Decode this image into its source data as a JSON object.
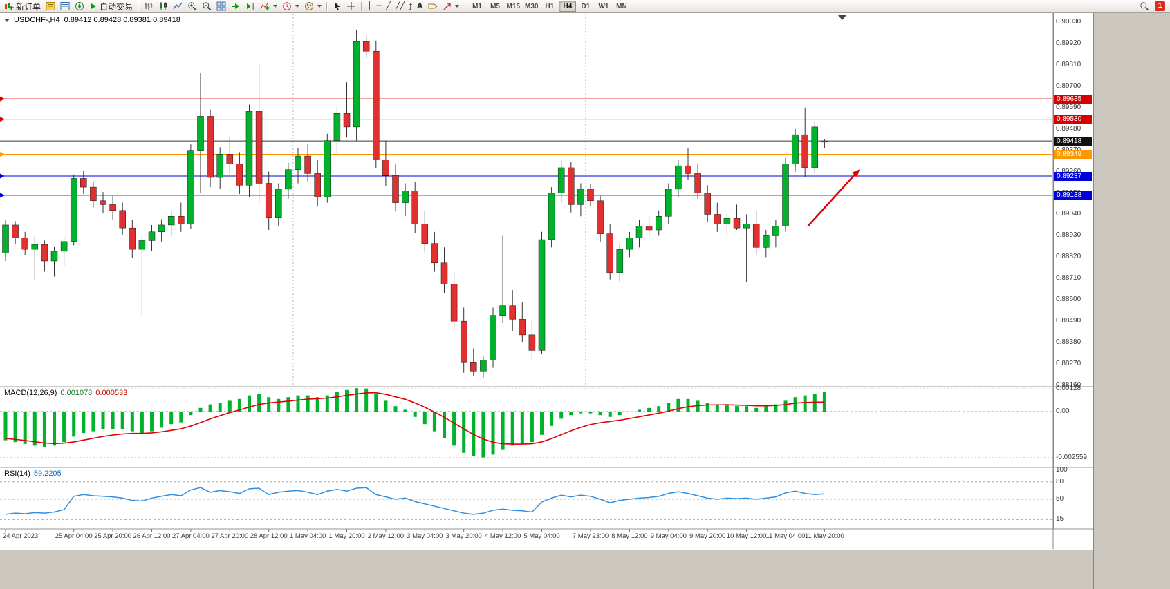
{
  "toolbar": {
    "new_order_label": "新订单",
    "auto_trading_label": "自动交易",
    "timeframes": [
      "M1",
      "M5",
      "M15",
      "M30",
      "H1",
      "H4",
      "D1",
      "W1",
      "MN"
    ],
    "active_timeframe": "H4",
    "notification_badge": "1"
  },
  "chart_header": {
    "symbol_period": "USDCHF-,H4",
    "ohlc": "0.89412 0.89428 0.89381 0.89418"
  },
  "chart_data": {
    "type": "candlestick",
    "symbol": "USDCHF-",
    "period": "H4",
    "y_axis": {
      "max": 0.9003,
      "min": 0.8816,
      "tick_step": 0.0011,
      "tick_labels": [
        "0.90030",
        "0.89920",
        "0.89810",
        "0.89700",
        "0.89590",
        "0.89480",
        "0.89370",
        "0.89260",
        "0.89150",
        "0.89040",
        "0.88930",
        "0.88820",
        "0.88710",
        "0.88600",
        "0.88490",
        "0.88380",
        "0.88270",
        "0.88160"
      ]
    },
    "candles": [
      [
        0.8884,
        0.8901,
        0.888,
        0.88985
      ],
      [
        0.88985,
        0.89005,
        0.88885,
        0.8892
      ],
      [
        0.8892,
        0.8895,
        0.8883,
        0.8886
      ],
      [
        0.8886,
        0.88925,
        0.887,
        0.88885
      ],
      [
        0.88885,
        0.88905,
        0.88745,
        0.888
      ],
      [
        0.888,
        0.88875,
        0.8872,
        0.8885
      ],
      [
        0.8885,
        0.88925,
        0.88775,
        0.889
      ],
      [
        0.889,
        0.89245,
        0.8888,
        0.89225
      ],
      [
        0.89225,
        0.89265,
        0.89145,
        0.8918
      ],
      [
        0.8918,
        0.89205,
        0.89075,
        0.8911
      ],
      [
        0.8911,
        0.89155,
        0.89045,
        0.8909
      ],
      [
        0.8909,
        0.89135,
        0.8901,
        0.8906
      ],
      [
        0.8906,
        0.891,
        0.88935,
        0.8897
      ],
      [
        0.8897,
        0.8901,
        0.88815,
        0.8886
      ],
      [
        0.8886,
        0.88935,
        0.8852,
        0.88905
      ],
      [
        0.88905,
        0.88985,
        0.8885,
        0.8895
      ],
      [
        0.8895,
        0.89015,
        0.889,
        0.88985
      ],
      [
        0.88985,
        0.8906,
        0.8893,
        0.8903
      ],
      [
        0.8903,
        0.891,
        0.8895,
        0.8899
      ],
      [
        0.8899,
        0.894,
        0.88965,
        0.8937
      ],
      [
        0.8937,
        0.8977,
        0.8915,
        0.89545
      ],
      [
        0.89545,
        0.8958,
        0.8918,
        0.8923
      ],
      [
        0.8923,
        0.89385,
        0.8917,
        0.8935
      ],
      [
        0.8935,
        0.8944,
        0.8925,
        0.893
      ],
      [
        0.893,
        0.8936,
        0.89145,
        0.8919
      ],
      [
        0.8919,
        0.89605,
        0.8913,
        0.8957
      ],
      [
        0.8957,
        0.8982,
        0.89095,
        0.892
      ],
      [
        0.892,
        0.8926,
        0.8896,
        0.89025
      ],
      [
        0.89025,
        0.892,
        0.8898,
        0.8917
      ],
      [
        0.8917,
        0.89305,
        0.8912,
        0.8927
      ],
      [
        0.8927,
        0.8938,
        0.892,
        0.8934
      ],
      [
        0.8934,
        0.894,
        0.8921,
        0.8925
      ],
      [
        0.8925,
        0.8932,
        0.8908,
        0.8913
      ],
      [
        0.8913,
        0.89455,
        0.891,
        0.8942
      ],
      [
        0.8942,
        0.896,
        0.8935,
        0.8956
      ],
      [
        0.8956,
        0.8972,
        0.8944,
        0.8949
      ],
      [
        0.8949,
        0.8999,
        0.8942,
        0.8993
      ],
      [
        0.8993,
        0.8996,
        0.89845,
        0.8988
      ],
      [
        0.8988,
        0.89935,
        0.8928,
        0.8932
      ],
      [
        0.8932,
        0.8942,
        0.89185,
        0.8924
      ],
      [
        0.8924,
        0.893,
        0.89055,
        0.891
      ],
      [
        0.891,
        0.892,
        0.8903,
        0.8916
      ],
      [
        0.8916,
        0.89205,
        0.88945,
        0.8899
      ],
      [
        0.8899,
        0.8906,
        0.88845,
        0.8889
      ],
      [
        0.8889,
        0.8895,
        0.88745,
        0.8879
      ],
      [
        0.8879,
        0.8887,
        0.88635,
        0.8868
      ],
      [
        0.8868,
        0.8874,
        0.88445,
        0.8849
      ],
      [
        0.8849,
        0.8856,
        0.88225,
        0.8828
      ],
      [
        0.8828,
        0.8835,
        0.8821,
        0.8823
      ],
      [
        0.8823,
        0.8831,
        0.882,
        0.8829
      ],
      [
        0.8829,
        0.8856,
        0.8825,
        0.8852
      ],
      [
        0.8852,
        0.8893,
        0.8848,
        0.8857
      ],
      [
        0.8857,
        0.8865,
        0.8844,
        0.885
      ],
      [
        0.885,
        0.8859,
        0.8838,
        0.8842
      ],
      [
        0.8842,
        0.885,
        0.88295,
        0.8834
      ],
      [
        0.8834,
        0.8895,
        0.8832,
        0.8891
      ],
      [
        0.8891,
        0.8918,
        0.8887,
        0.8915
      ],
      [
        0.8915,
        0.8932,
        0.891,
        0.8928
      ],
      [
        0.8928,
        0.8931,
        0.8905,
        0.8909
      ],
      [
        0.8909,
        0.892,
        0.8903,
        0.8917
      ],
      [
        0.8917,
        0.89195,
        0.8908,
        0.8911
      ],
      [
        0.8911,
        0.89135,
        0.889,
        0.8894
      ],
      [
        0.8894,
        0.8899,
        0.88705,
        0.8874
      ],
      [
        0.8874,
        0.8889,
        0.8869,
        0.8886
      ],
      [
        0.8886,
        0.8895,
        0.8882,
        0.8892
      ],
      [
        0.8892,
        0.8901,
        0.8887,
        0.8898
      ],
      [
        0.8898,
        0.8903,
        0.8892,
        0.8896
      ],
      [
        0.8896,
        0.8906,
        0.8893,
        0.8903
      ],
      [
        0.8903,
        0.892,
        0.8899,
        0.8917
      ],
      [
        0.8917,
        0.8932,
        0.8913,
        0.8929
      ],
      [
        0.8929,
        0.8938,
        0.8922,
        0.8925
      ],
      [
        0.8925,
        0.893,
        0.8912,
        0.8915
      ],
      [
        0.8915,
        0.8919,
        0.89,
        0.8904
      ],
      [
        0.8904,
        0.891,
        0.8895,
        0.8899
      ],
      [
        0.8899,
        0.8906,
        0.8893,
        0.8902
      ],
      [
        0.8902,
        0.8909,
        0.8896,
        0.8897
      ],
      [
        0.8897,
        0.8904,
        0.8869,
        0.8899
      ],
      [
        0.8899,
        0.8906,
        0.8883,
        0.8887
      ],
      [
        0.8887,
        0.8896,
        0.8882,
        0.8893
      ],
      [
        0.8893,
        0.8901,
        0.8887,
        0.8898
      ],
      [
        0.8898,
        0.8933,
        0.8895,
        0.893
      ],
      [
        0.893,
        0.8948,
        0.8926,
        0.8945
      ],
      [
        0.8945,
        0.8959,
        0.8923,
        0.8928
      ],
      [
        0.8928,
        0.8952,
        0.8925,
        0.8949
      ],
      [
        0.89412,
        0.89428,
        0.89381,
        0.89418
      ]
    ],
    "time_labels": [
      [
        0,
        "24 Apr 2023"
      ],
      [
        7,
        "25 Apr 04:00"
      ],
      [
        11,
        "25 Apr 20:00"
      ],
      [
        15,
        "26 Apr 12:00"
      ],
      [
        19,
        "27 Apr 04:00"
      ],
      [
        23,
        "27 Apr 20:00"
      ],
      [
        27,
        "28 Apr 12:00"
      ],
      [
        31,
        "1 May 04:00"
      ],
      [
        35,
        "1 May 20:00"
      ],
      [
        39,
        "2 May 12:00"
      ],
      [
        43,
        "3 May 04:00"
      ],
      [
        47,
        "3 May 20:00"
      ],
      [
        51,
        "4 May 12:00"
      ],
      [
        55,
        "5 May 04:00"
      ],
      [
        60,
        "7 May 23:00"
      ],
      [
        64,
        "8 May 12:00"
      ],
      [
        68,
        "9 May 04:00"
      ],
      [
        72,
        "9 May 20:00"
      ],
      [
        76,
        "10 May 12:00"
      ],
      [
        80,
        "11 May 04:00"
      ],
      [
        84,
        "11 May 20:00"
      ]
    ],
    "week_separators": [
      30,
      60
    ],
    "h_lines": [
      {
        "price": 0.89635,
        "label": "0.89635",
        "color": "#d90000"
      },
      {
        "price": 0.8953,
        "label": "0.89530",
        "color": "#d90000"
      },
      {
        "price": 0.89349,
        "label": "0.89349",
        "color": "#ff9800"
      },
      {
        "price": 0.89237,
        "label": "0.89237",
        "color": "#0000d9"
      },
      {
        "price": 0.89138,
        "label": "0.89138",
        "color": "#0000d9"
      }
    ],
    "current_price": {
      "value": 0.89418,
      "label": "0.89418",
      "box_color": "#111111",
      "line_color": "#3a3a3a"
    },
    "trend_arrow": {
      "x1_idx": 82.3,
      "p1": 0.8898,
      "x2_idx": 87.6,
      "p2": 0.89272,
      "color": "#e00000"
    },
    "colors": {
      "up": "#00b22c",
      "down": "#e03030",
      "wick": "#333333"
    },
    "macd": {
      "name": "MACD(12,26,9)",
      "main_value": "0.001078",
      "signal_value": "0.000533",
      "axis_labels": {
        "max": "0.00128",
        "zero": "0.00",
        "min": "-0.002559"
      },
      "axis": {
        "max": 0.00128,
        "min": -0.002559
      },
      "hist_color": "#00b22c",
      "signal_color": "#e00000",
      "histogram": [
        -0.0016,
        -0.0017,
        -0.0018,
        -0.0019,
        -0.002,
        -0.0019,
        -0.0017,
        -0.0014,
        -0.0012,
        -0.0011,
        -0.001,
        -0.001,
        -0.001,
        -0.0011,
        -0.0012,
        -0.0011,
        -0.0009,
        -0.0007,
        -0.0006,
        -0.0002,
        0.0002,
        0.0004,
        0.0005,
        0.0006,
        0.0007,
        0.0009,
        0.001,
        0.0008,
        0.0007,
        0.0008,
        0.0009,
        0.0009,
        0.0008,
        0.0009,
        0.0011,
        0.0012,
        0.0013,
        0.00128,
        0.001,
        0.0006,
        0.0003,
        0.0001,
        -0.0003,
        -0.0007,
        -0.0011,
        -0.0015,
        -0.0019,
        -0.0023,
        -0.0025,
        -0.00256,
        -0.0024,
        -0.0021,
        -0.0019,
        -0.0018,
        -0.0017,
        -0.0013,
        -0.0008,
        -0.0004,
        -0.0002,
        -0.0001,
        -0.0001,
        -0.0002,
        -0.0003,
        -0.0002,
        0.0,
        0.0001,
        0.0002,
        0.0003,
        0.0005,
        0.0007,
        0.0007,
        0.0006,
        0.0005,
        0.0004,
        0.0004,
        0.0003,
        0.0003,
        0.0002,
        0.0003,
        0.0004,
        0.0006,
        0.0008,
        0.0009,
        0.001,
        0.001078
      ],
      "signal": [
        -0.0015,
        -0.00155,
        -0.00161,
        -0.00168,
        -0.00175,
        -0.00178,
        -0.00176,
        -0.00169,
        -0.00159,
        -0.00149,
        -0.00139,
        -0.00131,
        -0.00125,
        -0.00122,
        -0.00122,
        -0.00119,
        -0.00113,
        -0.00105,
        -0.00096,
        -0.00081,
        -0.00061,
        -0.00041,
        -0.00023,
        -6e-05,
        9e-05,
        0.00025,
        0.0004,
        0.00048,
        0.00053,
        0.00058,
        0.00064,
        0.00069,
        0.00072,
        0.00075,
        0.00082,
        0.0009,
        0.00098,
        0.00104,
        0.00105,
        0.00096,
        0.00082,
        0.00068,
        0.00048,
        0.00024,
        -3e-05,
        -0.00032,
        -0.00064,
        -0.00097,
        -0.00128,
        -0.00153,
        -0.00171,
        -0.00179,
        -0.00181,
        -0.00181,
        -0.00179,
        -0.00169,
        -0.00151,
        -0.00129,
        -0.00107,
        -0.00088,
        -0.00072,
        -0.00062,
        -0.00055,
        -0.00048,
        -0.00039,
        -0.00029,
        -0.00019,
        -9e-05,
        2e-05,
        0.00016,
        0.00027,
        0.00033,
        0.00037,
        0.00037,
        0.00038,
        0.00036,
        0.00035,
        0.00032,
        0.00032,
        0.00034,
        0.00039,
        0.00047,
        0.00051,
        0.00052,
        0.000533
      ]
    },
    "rsi": {
      "name": "RSI(14)",
      "value": "59.2205",
      "line_color": "#2f8fe0",
      "levels": [
        {
          "v": 100,
          "label": "100"
        },
        {
          "v": 80,
          "label": "80"
        },
        {
          "v": 50,
          "label": "50"
        },
        {
          "v": 15,
          "label": "15"
        }
      ],
      "values": [
        24,
        26,
        25,
        27,
        26,
        28,
        32,
        55,
        58,
        56,
        55,
        54,
        52,
        48,
        47,
        52,
        55,
        58,
        56,
        66,
        70,
        62,
        65,
        63,
        60,
        68,
        69,
        58,
        62,
        64,
        65,
        62,
        58,
        64,
        67,
        64,
        69,
        70,
        58,
        54,
        50,
        52,
        46,
        42,
        38,
        34,
        30,
        26,
        24,
        26,
        31,
        33,
        31,
        30,
        28,
        45,
        52,
        57,
        54,
        57,
        55,
        50,
        44,
        48,
        50,
        52,
        53,
        55,
        60,
        63,
        60,
        56,
        52,
        50,
        52,
        51,
        52,
        50,
        52,
        54,
        61,
        64,
        60,
        58,
        59.2205
      ]
    }
  }
}
